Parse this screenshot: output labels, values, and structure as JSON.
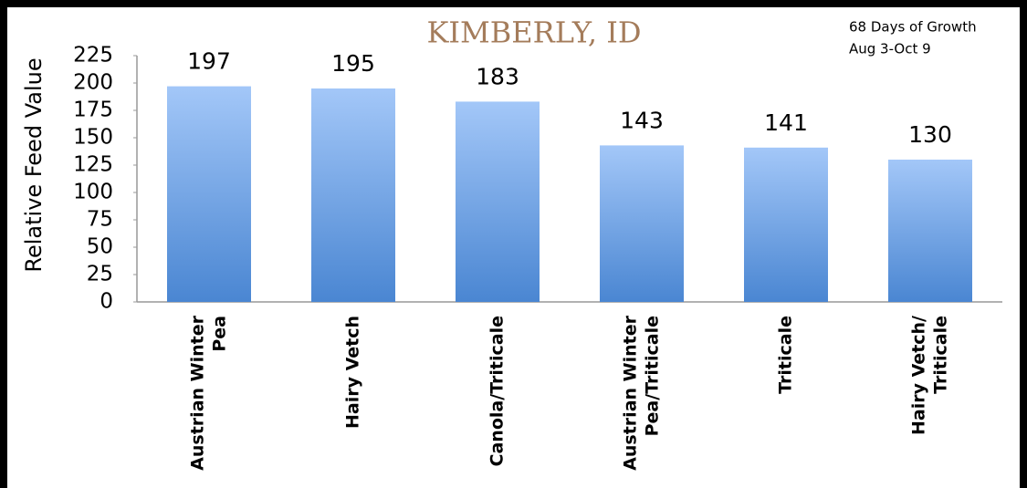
{
  "chart_data": {
    "type": "bar",
    "title": "KIMBERLY, ID",
    "annotations": [
      "68 Days of Growth",
      "Aug 3-Oct 9"
    ],
    "y_label": "Relative Feed Value",
    "categories": [
      [
        "Austrian Winter",
        "Pea"
      ],
      [
        "Hairy Vetch"
      ],
      [
        "Canola/Triticale"
      ],
      [
        "Austrian Winter",
        "Pea/Triticale"
      ],
      [
        "Triticale"
      ],
      [
        "Hairy Vetch/",
        "Triticale"
      ]
    ],
    "values": [
      197,
      195,
      183,
      143,
      141,
      130
    ],
    "color": "#4a86d2",
    "ylim": [
      0,
      225
    ],
    "yticks": [
      0,
      25,
      50,
      75,
      100,
      125,
      150,
      175,
      200,
      225
    ]
  }
}
